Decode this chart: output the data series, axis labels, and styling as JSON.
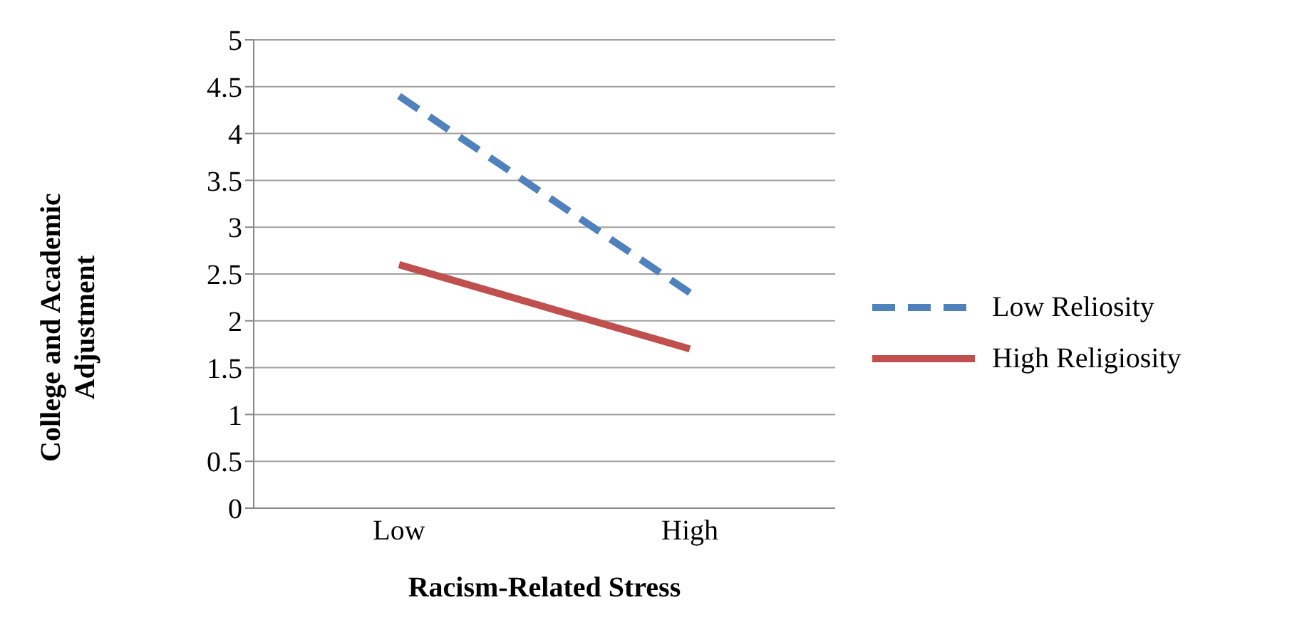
{
  "chart_data": {
    "type": "line",
    "xlabel": "Racism-Related Stress",
    "ylabel": "College and Academic Adjustment",
    "categories": [
      "Low",
      "High"
    ],
    "series": [
      {
        "name": "Low Reliosity",
        "color": "#4f81bd",
        "values": [
          4.4,
          2.3
        ],
        "line_style": "dashed"
      },
      {
        "name": "High Religiosity",
        "color": "#c0504d",
        "values": [
          2.6,
          1.7
        ],
        "line_style": "solid"
      }
    ],
    "ylim": [
      0,
      5
    ],
    "yticks": [
      0,
      0.5,
      1,
      1.5,
      2,
      2.5,
      3,
      3.5,
      4,
      4.5,
      5
    ],
    "grid": "y",
    "legend": "right",
    "marker": "none"
  }
}
